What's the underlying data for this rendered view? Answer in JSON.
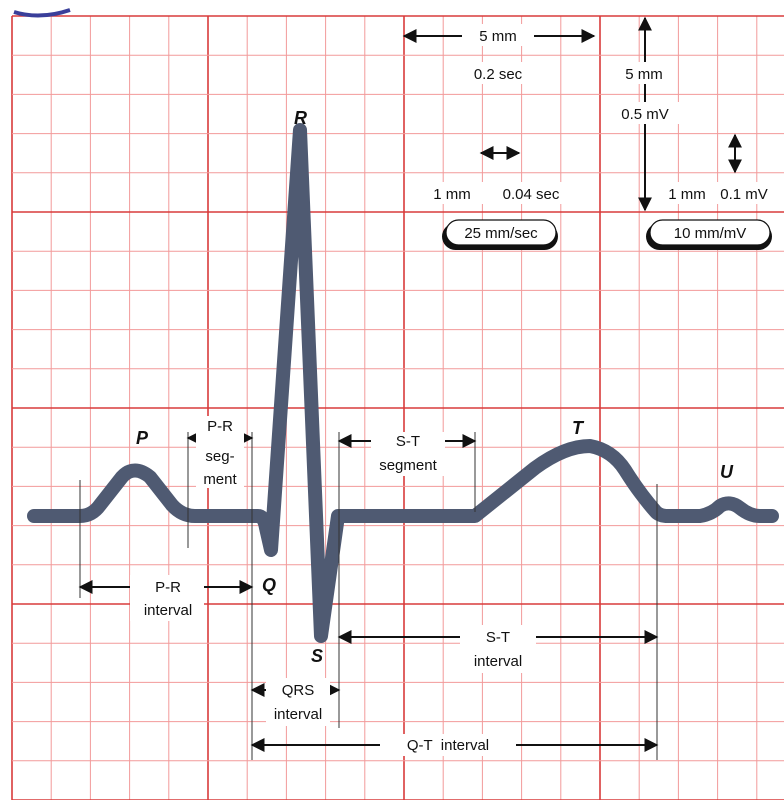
{
  "colors": {
    "grid_minor": "#f29a9a",
    "grid_major": "#d93b3b",
    "trace": "#4f5a72",
    "marker": "#111111",
    "accent_mark": "#3a3f9a"
  },
  "waves": {
    "p": "P",
    "q": "Q",
    "r": "R",
    "s": "S",
    "t": "T",
    "u": "U"
  },
  "labels": {
    "pr_segment": [
      "P-R",
      "seg-",
      "ment"
    ],
    "st_segment": [
      "S-T",
      "segment"
    ],
    "pr_interval": [
      "P-R",
      "interval"
    ],
    "st_interval": [
      "S-T",
      "interval"
    ],
    "qrs_interval": [
      "QRS",
      "interval"
    ],
    "qt_interval": "Q-T  interval"
  },
  "scale": {
    "big_box_time": "5 mm",
    "big_box_sec": "0.2 sec",
    "small_box_mm": "1 mm",
    "small_box_sec": "0.04 sec",
    "paper_speed": "25 mm/sec",
    "big_box_amp_mm": "5 mm",
    "big_box_mv": "0.5 mV",
    "small_box_amp_mm": "1 mm",
    "small_box_mv": "0.1 mV",
    "gain": "10 mm/mV"
  }
}
